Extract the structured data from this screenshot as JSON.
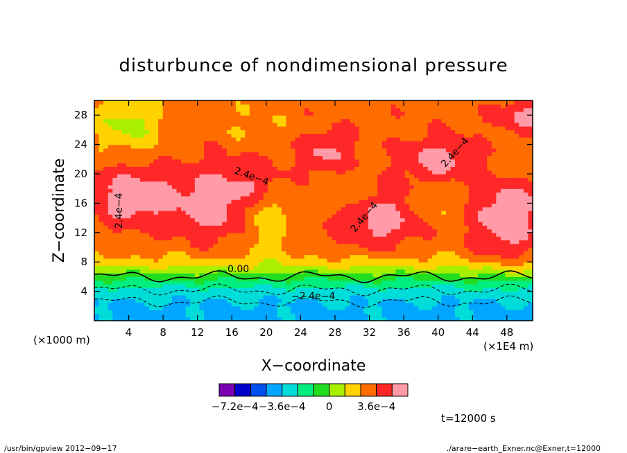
{
  "chart_data": {
    "type": "heatmap",
    "title": "disturbunce of nondimensional pressure",
    "xlabel": "X−coordinate",
    "ylabel": "Z−coordinate",
    "x_unit": "(×1E4 m)",
    "y_unit": "(×1000 m)",
    "xlim": [
      0,
      51
    ],
    "ylim": [
      0,
      30
    ],
    "x_ticks": [
      "4",
      "8",
      "12",
      "16",
      "20",
      "24",
      "28",
      "32",
      "36",
      "40",
      "44",
      "48"
    ],
    "y_ticks": [
      "4",
      "8",
      "12",
      "16",
      "20",
      "24",
      "28"
    ],
    "x_tick_values": [
      4,
      8,
      12,
      16,
      20,
      24,
      28,
      32,
      36,
      40,
      44,
      48
    ],
    "y_tick_values": [
      4,
      8,
      12,
      16,
      20,
      24,
      28
    ],
    "colorbar": {
      "levels": [
        -0.00084,
        -0.00072,
        -0.0006,
        -0.00048,
        -0.00036,
        -0.00024,
        -0.00012,
        0,
        0.00012,
        0.00024,
        0.00036,
        0.00048,
        0.0006
      ],
      "colors": [
        "#7a00b4",
        "#0000cd",
        "#0050ee",
        "#00a6ff",
        "#00dcd8",
        "#00ee80",
        "#22dd22",
        "#a8f000",
        "#ffd200",
        "#ff6c00",
        "#ff2828",
        "#ff9aa8"
      ],
      "tick_labels": [
        "−7.2e−4",
        "−3.6e−4",
        "0",
        "3.6e−4"
      ],
      "tick_values": [
        -0.00072,
        -0.00036,
        0,
        0.00036
      ]
    },
    "contour_labels": [
      "2.4e−4",
      "2.4e−4",
      "2.4e−4",
      "2.4e−4",
      "0.00",
      "−2.4e−4"
    ],
    "annotations": {
      "time": "t=12000 s",
      "left_footer": "/usr/bin/gpview   2012−09−17",
      "right_footer": "./arare−earth_Exner.nc@Exner,t=12000"
    }
  }
}
